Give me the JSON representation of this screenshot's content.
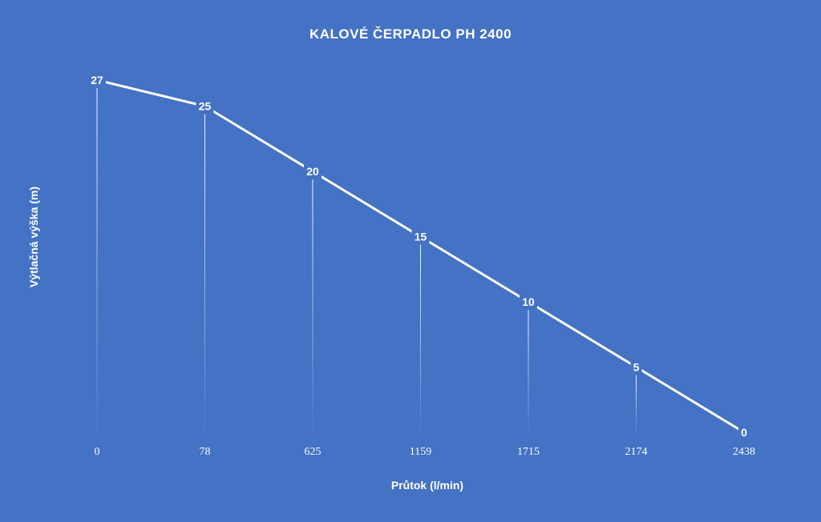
{
  "chart_data": {
    "type": "line",
    "title": "KALOVÉ ČERPADLO PH 2400",
    "xlabel": "Průtok (l/min)",
    "ylabel": "Výtlačná výška (m)",
    "categories": [
      "0",
      "78",
      "625",
      "1159",
      "1715",
      "2174",
      "2438"
    ],
    "series": [
      {
        "values": [
          27,
          25,
          20,
          15,
          10,
          5,
          0
        ]
      }
    ],
    "data_labels": [
      "27",
      "25",
      "20",
      "15",
      "10",
      "5",
      "0"
    ],
    "ylim": [
      0,
      27
    ],
    "grid": false,
    "drop_lines": true,
    "legend": "none",
    "colors": {
      "background": "#4472c4",
      "line": "#ffffff",
      "text": "#ffffff"
    }
  }
}
